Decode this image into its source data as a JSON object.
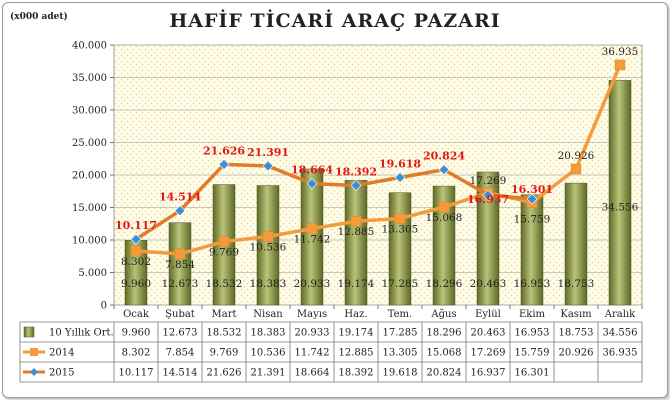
{
  "chart_data": {
    "type": "bar",
    "title": "HAFİF TİCARİ ARAÇ PAZARI",
    "unit_label": "(x000 adet)",
    "categories": [
      "Ocak",
      "Şubat",
      "Mart",
      "Nisan",
      "Mayıs",
      "Haz.",
      "Tem.",
      "Ağus",
      "Eylül",
      "Ekim",
      "Kasım",
      "Aralık"
    ],
    "ylim": [
      0,
      40000
    ],
    "yticks": [
      "0",
      "5.000",
      "10.000",
      "15.000",
      "20.000",
      "25.000",
      "30.000",
      "35.000",
      "40.000"
    ],
    "series": [
      {
        "name": "10 Yıllık Ort.",
        "kind": "bar",
        "color": "#7d8a3a",
        "values": [
          9960,
          12673,
          18532,
          18383,
          20933,
          19174,
          17285,
          18296,
          20463,
          16953,
          18753,
          34556
        ],
        "labels": [
          "9.960",
          "12.673",
          "18.532",
          "18.383",
          "20.933",
          "19.174",
          "17.285",
          "18.296",
          "20.463",
          "16.953",
          "18.753",
          "34.556"
        ]
      },
      {
        "name": "2014",
        "kind": "line",
        "color": "#f39b3d",
        "values": [
          8302,
          7854,
          9769,
          10536,
          11742,
          12885,
          13305,
          15068,
          17269,
          15759,
          20926,
          36935
        ],
        "labels": [
          "8.302",
          "7.854",
          "9.769",
          "10.536",
          "11.742",
          "12.885",
          "13.305",
          "15.068",
          "17.269",
          "15.759",
          "20.926",
          "36.935"
        ]
      },
      {
        "name": "2015",
        "kind": "line",
        "color": "#e07b2a",
        "marker_color": "#3a8fd6",
        "values": [
          10117,
          14514,
          21626,
          21391,
          18664,
          18392,
          19618,
          20824,
          16937,
          16301,
          null,
          null
        ],
        "labels": [
          "10.117",
          "14.514",
          "21.626",
          "21.391",
          "18.664",
          "18.392",
          "19.618",
          "20.824",
          "16.937",
          "16.301",
          "",
          ""
        ]
      }
    ],
    "grid": true,
    "legend": "table-below"
  }
}
